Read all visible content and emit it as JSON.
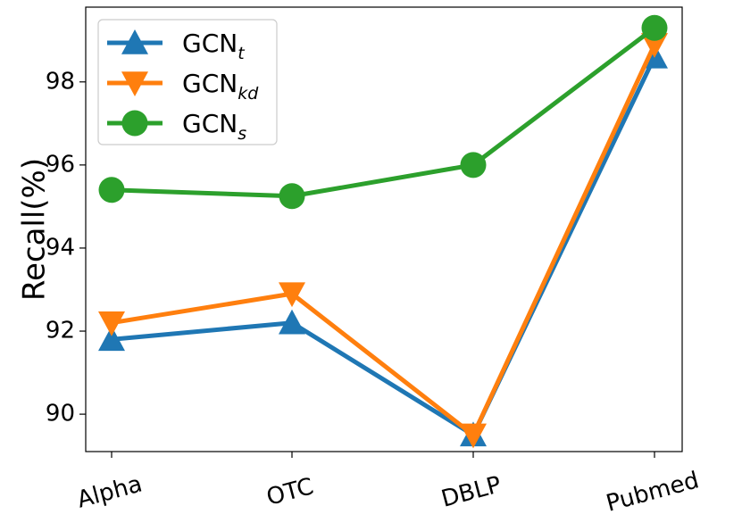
{
  "chart_data": {
    "type": "line",
    "title": "",
    "xlabel": "",
    "ylabel": "Recall(%)",
    "categories": [
      "Alpha",
      "OTC",
      "DBLP",
      "Pubmed"
    ],
    "ylim": [
      89.1,
      99.8
    ],
    "yticks": [
      90,
      92,
      94,
      96,
      98
    ],
    "legend_position": "top-left",
    "series": [
      {
        "name": "GCN",
        "subscript": "t",
        "color": "#1f77b4",
        "marker": "triangle-up",
        "values": [
          91.8,
          92.2,
          89.5,
          98.6
        ]
      },
      {
        "name": "GCN",
        "subscript": "kd",
        "color": "#ff7f0e",
        "marker": "triangle-down",
        "values": [
          92.2,
          92.9,
          89.5,
          98.9
        ]
      },
      {
        "name": "GCN",
        "subscript": "s",
        "color": "#2ca02c",
        "marker": "circle",
        "values": [
          95.4,
          95.25,
          96.0,
          99.3
        ]
      }
    ]
  }
}
